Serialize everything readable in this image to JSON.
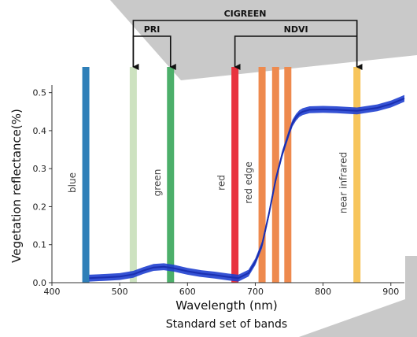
{
  "chart_data": {
    "type": "line",
    "title": "",
    "xlabel": "Wavelength (nm)",
    "ylabel": "Vegetation reflectance(%)",
    "caption": "Standard set of bands",
    "xlim": [
      400,
      920
    ],
    "ylim": [
      0,
      0.52
    ],
    "xticks": [
      400,
      500,
      600,
      700,
      800,
      900
    ],
    "yticks": [
      0.0,
      0.1,
      0.2,
      0.3,
      0.4,
      0.5
    ],
    "xtick_labels": [
      "400",
      "500",
      "600",
      "700",
      "800",
      "900"
    ],
    "ytick_labels": [
      "0.0",
      "0.1",
      "0.2",
      "0.3",
      "0.4",
      "0.5"
    ],
    "grid": false,
    "series": [
      {
        "color": "#1f3fcf",
        "x": [
          455,
          480,
          500,
          520,
          535,
          550,
          565,
          580,
          600,
          620,
          640,
          660,
          675,
          690,
          700,
          710,
          720,
          730,
          740,
          750,
          755,
          760,
          765,
          770,
          780,
          800,
          820,
          850,
          880,
          900,
          920
        ],
        "y": [
          0.012,
          0.014,
          0.016,
          0.022,
          0.032,
          0.04,
          0.042,
          0.038,
          0.03,
          0.024,
          0.02,
          0.015,
          0.012,
          0.025,
          0.055,
          0.1,
          0.18,
          0.27,
          0.34,
          0.395,
          0.42,
          0.435,
          0.445,
          0.45,
          0.455,
          0.456,
          0.455,
          0.452,
          0.46,
          0.47,
          0.485
        ],
        "band_width": 0.018
      }
    ],
    "bands": [
      {
        "center": 450,
        "color": "#2e7fb8",
        "label": "blue"
      },
      {
        "center": 520,
        "color": "#cde2c0",
        "label": ""
      },
      {
        "center": 575,
        "color": "#4caf6a",
        "label": "green"
      },
      {
        "center": 670,
        "color": "#e8333f",
        "label": "red"
      },
      {
        "center": 710,
        "color": "#ee8a4e",
        "label": "red edge"
      },
      {
        "center": 730,
        "color": "#ee8a4e",
        "label": ""
      },
      {
        "center": 748,
        "color": "#ee8a4e",
        "label": ""
      },
      {
        "center": 850,
        "color": "#f7c55c",
        "label": "near infrared"
      }
    ],
    "indices": [
      {
        "name": "CIGREEN",
        "from": 520,
        "to": 850
      },
      {
        "name": "PRI",
        "from": 520,
        "to": 575
      },
      {
        "name": "NDVI",
        "from": 670,
        "to": 850
      }
    ],
    "colors": {
      "background_shape": "#c9c9c9",
      "axis": "#333333",
      "arrow": "#111111"
    }
  }
}
